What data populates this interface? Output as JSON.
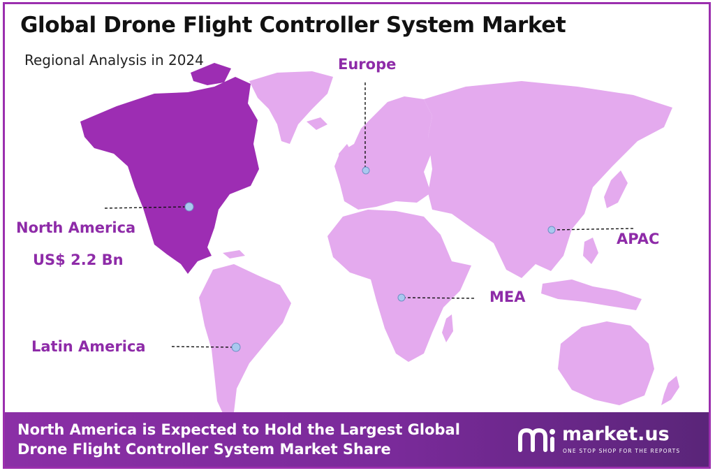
{
  "title": "Global Drone Flight Controller System Market",
  "subtitle": "Regional Analysis in 2024",
  "regions": {
    "north_america": {
      "label": "North America",
      "value": "US$ 2.2 Bn"
    },
    "europe": {
      "label": "Europe"
    },
    "apac": {
      "label": "APAC"
    },
    "mea": {
      "label": "MEA"
    },
    "latin_america": {
      "label": "Latin America"
    }
  },
  "colors": {
    "highlight_region": "#9d2db3",
    "other_regions": "#e4aaee",
    "marker": "#a9c8ef",
    "label_text": "#8e2ba8",
    "footer_bg": "#7f2c9f"
  },
  "footer": {
    "line1": "North America is Expected to Hold the Largest Global",
    "line2": "Drone Flight Controller System Market Share"
  },
  "brand": {
    "name": "market.us",
    "tagline": "ONE STOP SHOP FOR THE REPORTS",
    "logo_icon": "market-us-logo-icon"
  }
}
